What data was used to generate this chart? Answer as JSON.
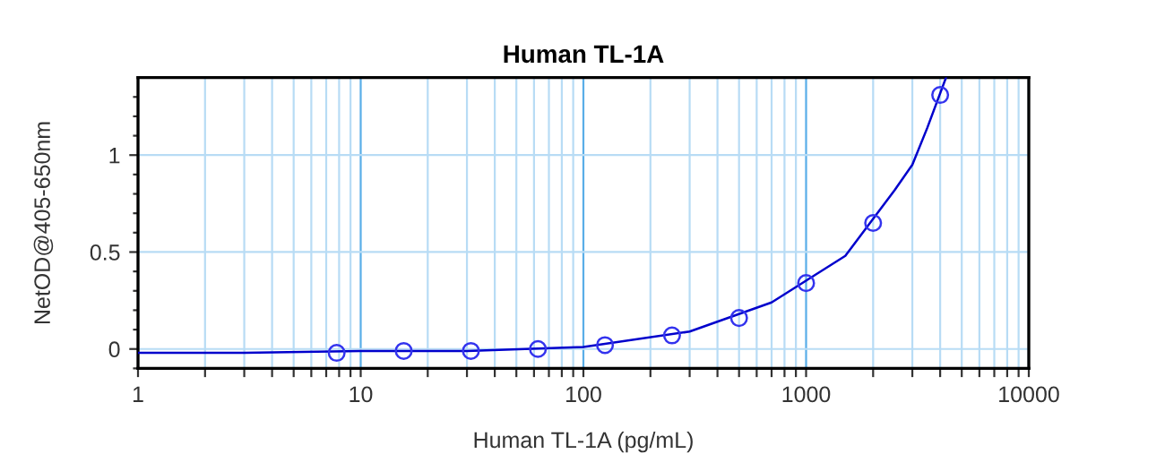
{
  "chart_data": {
    "type": "scatter",
    "title": "Human TL-1A",
    "xlabel": "Human TL-1A (pg/mL)",
    "ylabel": "NetOD@405-650nm",
    "log": "x",
    "grid": true,
    "marker": "none",
    "xlim": [
      1,
      10000
    ],
    "xticks": [
      1,
      {
        "value": 2,
        "label": null
      },
      {
        "value": 3,
        "label": null
      },
      {
        "value": 4,
        "label": null
      },
      {
        "value": 5,
        "label": null
      },
      {
        "value": 6,
        "label": null
      },
      {
        "value": 7,
        "label": null
      },
      {
        "value": 8,
        "label": null
      },
      {
        "value": 9,
        "label": null
      },
      10,
      {
        "value": 20,
        "label": null
      },
      {
        "value": 30,
        "label": null
      },
      {
        "value": 40,
        "label": null
      },
      {
        "value": 50,
        "label": null
      },
      {
        "value": 60,
        "label": null
      },
      {
        "value": 70,
        "label": null
      },
      {
        "value": 80,
        "label": null
      },
      {
        "value": 90,
        "label": null
      },
      100,
      {
        "value": 200,
        "label": null
      },
      {
        "value": 300,
        "label": null
      },
      {
        "value": 400,
        "label": null
      },
      {
        "value": 500,
        "label": null
      },
      {
        "value": 600,
        "label": null
      },
      {
        "value": 700,
        "label": null
      },
      {
        "value": 800,
        "label": null
      },
      {
        "value": 900,
        "label": null
      },
      1000,
      {
        "value": 2000,
        "label": null
      },
      {
        "value": 3000,
        "label": null
      },
      {
        "value": 4000,
        "label": null
      },
      {
        "value": 5000,
        "label": null
      },
      {
        "value": 6000,
        "label": null
      },
      {
        "value": 7000,
        "label": null
      },
      {
        "value": 8000,
        "label": null
      },
      {
        "value": 9000,
        "label": null
      },
      10000
    ],
    "ylim": [
      -0.1,
      1.4
    ],
    "yticks": [
      {
        "value": -0.1,
        "label": null
      },
      0,
      {
        "value": 0.1,
        "label": null
      },
      {
        "value": 0.2,
        "label": null
      },
      {
        "value": 0.3,
        "label": null
      },
      {
        "value": 0.4,
        "label": null
      },
      0.5,
      {
        "value": 0.6,
        "label": null
      },
      {
        "value": 0.7,
        "label": null
      },
      {
        "value": 0.8,
        "label": null
      },
      {
        "value": 0.9,
        "label": null
      },
      1,
      {
        "value": 1.1,
        "label": null
      },
      {
        "value": 1.2,
        "label": null
      },
      {
        "value": 1.3,
        "label": null
      }
    ],
    "series": [
      {
        "type": "line",
        "color": "#0000cc",
        "x": [
          1,
          3,
          10,
          30,
          100,
          300,
          700,
          1500,
          2500,
          3000,
          3500,
          4250
        ],
        "values": [
          -0.02,
          -0.02,
          -0.01,
          -0.01,
          0.01,
          0.09,
          0.24,
          0.48,
          0.82,
          0.95,
          1.14,
          1.4
        ]
      },
      {
        "color": "#3333ee",
        "marker": "circle",
        "x": [
          7.8,
          15.6,
          31.25,
          62.5,
          125,
          250,
          500,
          1000,
          2000,
          4000
        ],
        "values": [
          -0.02,
          -0.01,
          -0.01,
          0.0,
          0.02,
          0.07,
          0.16,
          0.34,
          0.65,
          1.31
        ]
      }
    ]
  }
}
